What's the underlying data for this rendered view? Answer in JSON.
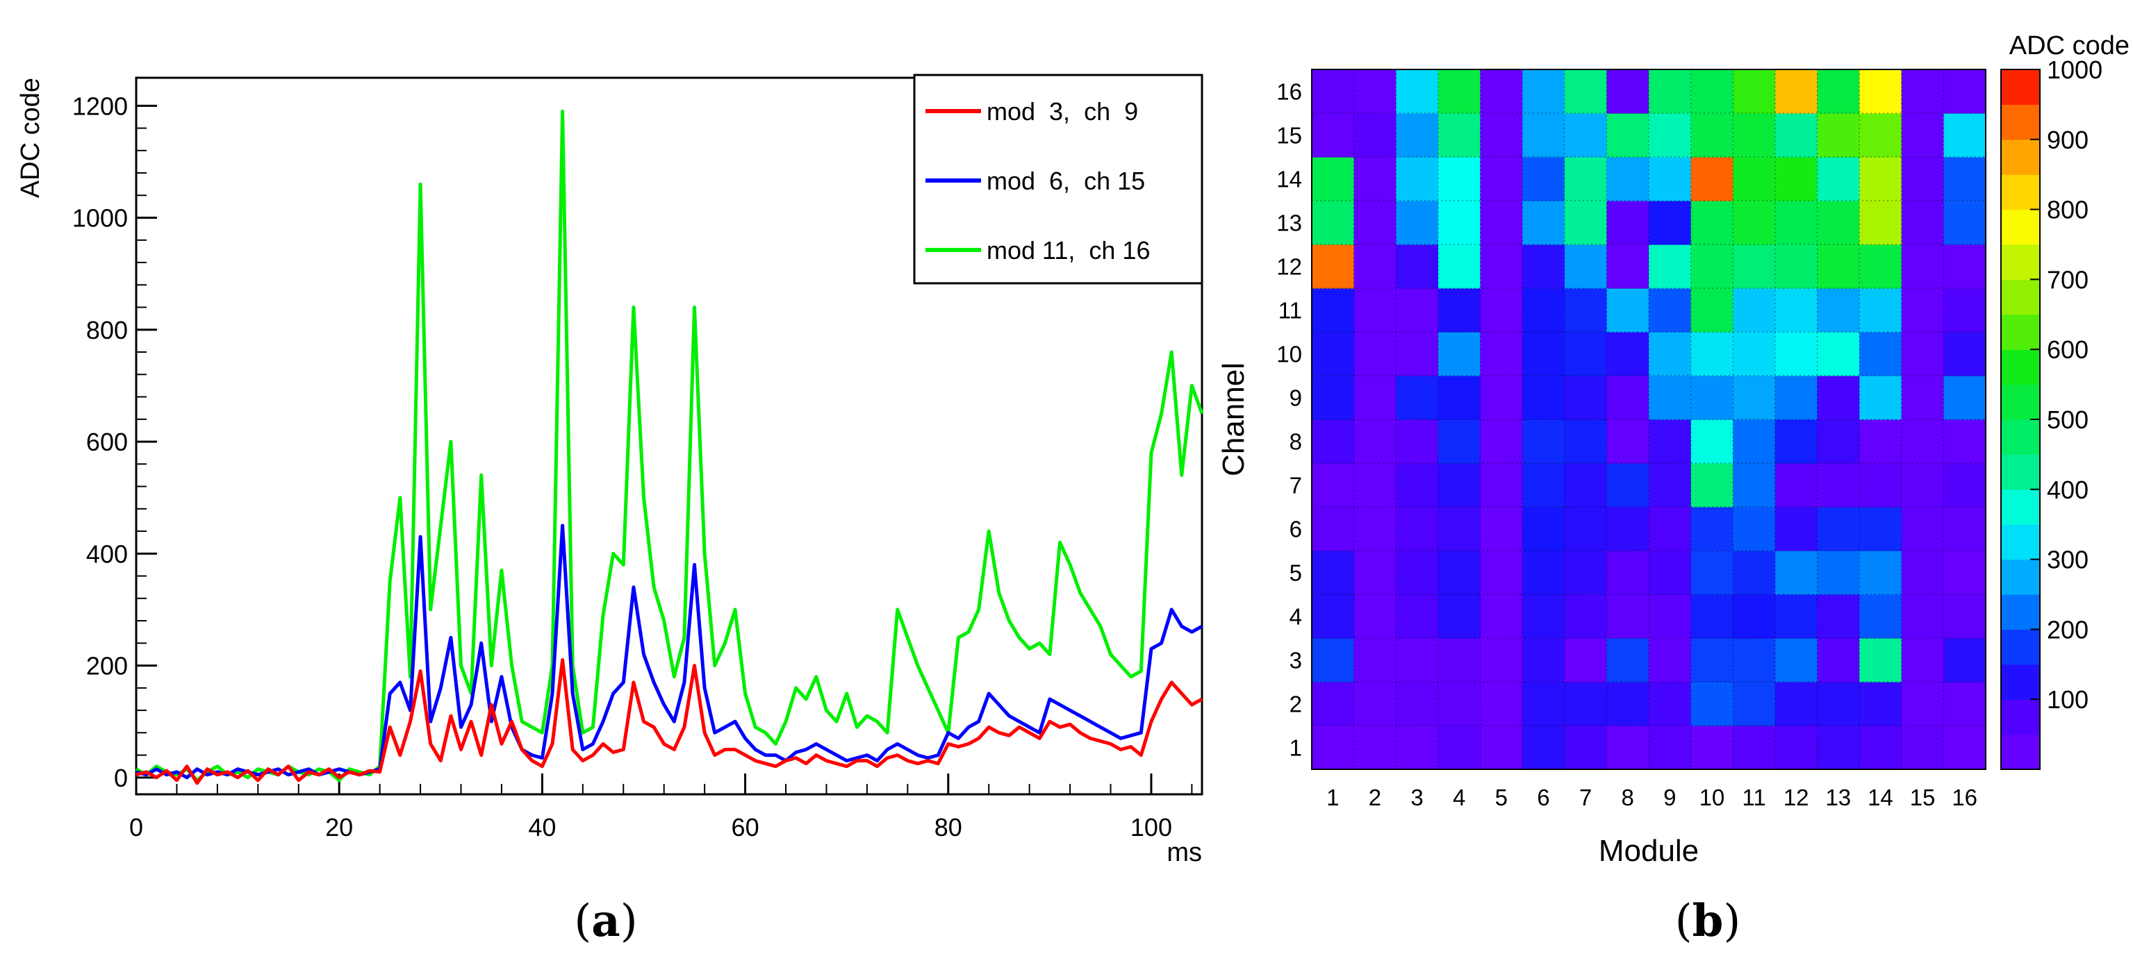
{
  "chart_data": [
    {
      "type": "line",
      "panel_label": "a",
      "xlabel": "ms",
      "ylabel": "ADC code",
      "xlim": [
        0,
        105
      ],
      "ylim": [
        -30,
        1250
      ],
      "xticks": [
        "0",
        "20",
        "40",
        "60",
        "80",
        "100"
      ],
      "yticks": [
        "0",
        "200",
        "400",
        "600",
        "800",
        "1000",
        "1200"
      ],
      "legend_position": "top-right",
      "grid": false,
      "x": [
        0,
        1,
        2,
        3,
        4,
        5,
        6,
        7,
        8,
        9,
        10,
        11,
        12,
        13,
        14,
        15,
        16,
        17,
        18,
        19,
        20,
        21,
        22,
        23,
        24,
        25,
        26,
        27,
        28,
        29,
        30,
        31,
        32,
        33,
        34,
        35,
        36,
        37,
        38,
        39,
        40,
        41,
        42,
        43,
        44,
        45,
        46,
        47,
        48,
        49,
        50,
        51,
        52,
        53,
        54,
        55,
        56,
        57,
        58,
        59,
        60,
        61,
        62,
        63,
        64,
        65,
        66,
        67,
        68,
        69,
        70,
        71,
        72,
        73,
        74,
        75,
        76,
        77,
        78,
        79,
        80,
        81,
        82,
        83,
        84,
        85,
        86,
        87,
        88,
        89,
        90,
        91,
        92,
        93,
        94,
        95,
        96,
        97,
        98,
        99,
        100,
        101,
        102,
        103,
        104,
        105
      ],
      "series": [
        {
          "name": "mod  3,  ch  9",
          "color": "#ff0000",
          "values": [
            5,
            10,
            0,
            12,
            -5,
            20,
            -10,
            15,
            5,
            10,
            0,
            12,
            -5,
            15,
            5,
            20,
            -5,
            10,
            5,
            15,
            0,
            10,
            5,
            12,
            10,
            90,
            40,
            100,
            190,
            60,
            30,
            110,
            50,
            100,
            40,
            130,
            60,
            100,
            50,
            30,
            20,
            60,
            210,
            50,
            30,
            40,
            60,
            45,
            50,
            170,
            100,
            90,
            60,
            50,
            90,
            200,
            80,
            40,
            50,
            50,
            40,
            30,
            25,
            20,
            30,
            35,
            25,
            40,
            30,
            25,
            20,
            30,
            30,
            20,
            35,
            40,
            30,
            25,
            30,
            25,
            60,
            55,
            60,
            70,
            90,
            80,
            75,
            90,
            80,
            70,
            100,
            90,
            95,
            80,
            70,
            65,
            60,
            50,
            55,
            40,
            100,
            140,
            170,
            150,
            130,
            140
          ]
        },
        {
          "name": "mod  6,  ch 15",
          "color": "#0000ff",
          "values": [
            10,
            5,
            15,
            5,
            10,
            0,
            15,
            5,
            10,
            5,
            15,
            10,
            5,
            10,
            15,
            5,
            10,
            15,
            5,
            10,
            15,
            10,
            5,
            10,
            15,
            150,
            170,
            120,
            430,
            100,
            160,
            250,
            90,
            130,
            240,
            100,
            180,
            90,
            50,
            40,
            35,
            150,
            450,
            150,
            50,
            60,
            100,
            150,
            170,
            340,
            220,
            170,
            130,
            100,
            170,
            380,
            160,
            80,
            90,
            100,
            70,
            50,
            40,
            40,
            30,
            45,
            50,
            60,
            50,
            40,
            30,
            35,
            40,
            30,
            50,
            60,
            50,
            40,
            35,
            40,
            80,
            70,
            90,
            100,
            150,
            130,
            110,
            100,
            90,
            80,
            140,
            130,
            120,
            110,
            100,
            90,
            80,
            70,
            75,
            80,
            230,
            240,
            300,
            270,
            260,
            270
          ]
        },
        {
          "name": "mod 11,  ch 16",
          "color": "#00ee00",
          "values": [
            15,
            5,
            20,
            10,
            5,
            15,
            -5,
            10,
            20,
            5,
            10,
            0,
            15,
            10,
            5,
            20,
            10,
            5,
            15,
            10,
            -5,
            15,
            10,
            5,
            20,
            350,
            500,
            180,
            1060,
            300,
            450,
            600,
            200,
            150,
            540,
            200,
            370,
            200,
            100,
            90,
            80,
            200,
            1190,
            200,
            80,
            90,
            290,
            400,
            380,
            840,
            500,
            340,
            280,
            180,
            250,
            840,
            400,
            200,
            240,
            300,
            150,
            90,
            80,
            60,
            100,
            160,
            140,
            180,
            120,
            100,
            150,
            90,
            110,
            100,
            80,
            300,
            250,
            200,
            160,
            120,
            80,
            250,
            260,
            300,
            440,
            330,
            280,
            250,
            230,
            240,
            220,
            420,
            380,
            330,
            300,
            270,
            220,
            200,
            180,
            190,
            580,
            650,
            760,
            540,
            700,
            650
          ]
        }
      ]
    },
    {
      "type": "heatmap",
      "panel_label": "b",
      "xlabel": "Module",
      "ylabel": "Channel",
      "colorbar_title": "ADC code",
      "colorbar_range": [
        0,
        1000
      ],
      "colorbar_ticks": [
        "100",
        "200",
        "300",
        "400",
        "500",
        "600",
        "700",
        "800",
        "900",
        "1000"
      ],
      "x_categories": [
        "1",
        "2",
        "3",
        "4",
        "5",
        "6",
        "7",
        "8",
        "9",
        "10",
        "11",
        "12",
        "13",
        "14",
        "15",
        "16"
      ],
      "y_categories": [
        "1",
        "2",
        "3",
        "4",
        "5",
        "6",
        "7",
        "8",
        "9",
        "10",
        "11",
        "12",
        "13",
        "14",
        "15",
        "16"
      ],
      "values": [
        [
          20,
          20,
          20,
          60,
          20,
          120,
          90,
          30,
          60,
          20,
          60,
          80,
          100,
          80,
          40,
          20
        ],
        [
          60,
          30,
          40,
          40,
          20,
          120,
          120,
          120,
          90,
          200,
          180,
          120,
          120,
          110,
          30,
          30
        ],
        [
          180,
          30,
          30,
          40,
          20,
          110,
          20,
          180,
          40,
          180,
          180,
          220,
          60,
          420,
          30,
          120
        ],
        [
          120,
          30,
          80,
          120,
          20,
          120,
          90,
          40,
          50,
          150,
          140,
          150,
          100,
          200,
          40,
          40
        ],
        [
          120,
          30,
          90,
          120,
          20,
          130,
          110,
          50,
          90,
          180,
          160,
          240,
          220,
          240,
          40,
          20
        ],
        [
          40,
          30,
          80,
          100,
          20,
          140,
          120,
          110,
          80,
          170,
          200,
          110,
          160,
          160,
          40,
          40
        ],
        [
          30,
          30,
          90,
          120,
          30,
          150,
          120,
          160,
          100,
          450,
          220,
          50,
          50,
          50,
          40,
          70
        ],
        [
          90,
          30,
          50,
          160,
          20,
          160,
          150,
          30,
          100,
          370,
          220,
          150,
          100,
          30,
          30,
          30
        ],
        [
          130,
          30,
          150,
          140,
          20,
          140,
          120,
          50,
          250,
          250,
          270,
          230,
          90,
          300,
          30,
          230
        ],
        [
          130,
          30,
          30,
          250,
          20,
          140,
          150,
          120,
          280,
          330,
          320,
          350,
          370,
          220,
          30,
          110
        ],
        [
          140,
          30,
          30,
          130,
          20,
          140,
          160,
          280,
          200,
          500,
          300,
          320,
          270,
          300,
          30,
          80
        ],
        [
          920,
          30,
          100,
          370,
          20,
          120,
          260,
          30,
          390,
          490,
          460,
          470,
          530,
          520,
          30,
          30
        ],
        [
          470,
          30,
          250,
          360,
          20,
          260,
          420,
          50,
          140,
          500,
          540,
          500,
          520,
          700,
          40,
          200
        ],
        [
          500,
          30,
          300,
          360,
          20,
          200,
          420,
          270,
          300,
          930,
          560,
          580,
          400,
          700,
          40,
          200
        ],
        [
          30,
          60,
          260,
          440,
          20,
          270,
          280,
          460,
          400,
          510,
          530,
          420,
          620,
          640,
          30,
          320
        ],
        [
          40,
          30,
          320,
          520,
          20,
          270,
          440,
          40,
          470,
          500,
          600,
          850,
          520,
          780,
          30,
          30
        ]
      ]
    }
  ]
}
